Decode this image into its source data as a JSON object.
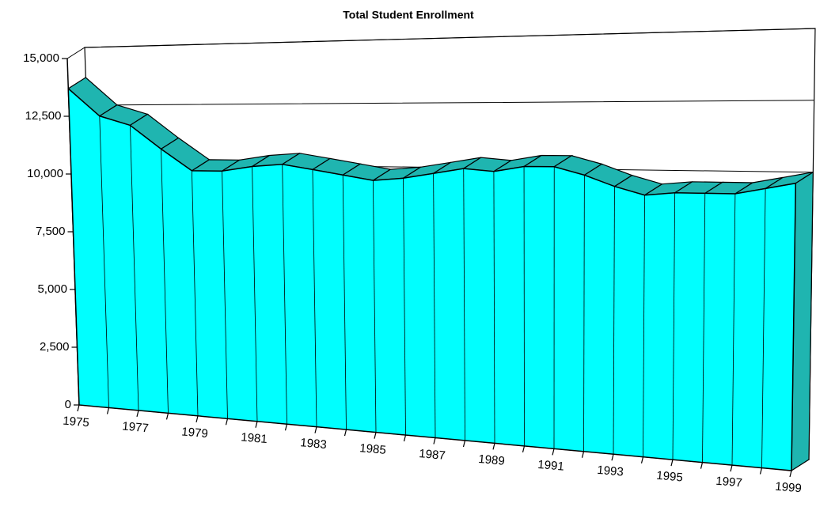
{
  "chart_data": {
    "type": "area3d",
    "title": "Total Student Enrollment",
    "categories": [
      "1975",
      null,
      "1977",
      null,
      "1979",
      null,
      "1981",
      null,
      "1983",
      null,
      "1985",
      null,
      "1987",
      null,
      "1989",
      null,
      "1991",
      null,
      "1993",
      null,
      "1995",
      null,
      "1997",
      null,
      "1999"
    ],
    "values": [
      13700,
      12500,
      12100,
      11100,
      10200,
      10200,
      10400,
      10500,
      10300,
      10100,
      9900,
      10000,
      10200,
      10400,
      10300,
      10500,
      10500,
      10200,
      9800,
      9500,
      9600,
      9600,
      9600,
      9800,
      10000
    ],
    "color": "#00ffff",
    "top_color": "#1fb5b0",
    "ylim": [
      0,
      15000
    ],
    "yticks": [
      0,
      {
        "value": 2500,
        "label": "2,500"
      },
      {
        "value": 5000,
        "label": "5,000"
      },
      {
        "value": 7500,
        "label": "7,500"
      },
      {
        "value": 10000,
        "label": "10,000"
      },
      {
        "value": 12500,
        "label": "12,500"
      },
      {
        "value": 15000,
        "label": "15,000"
      }
    ],
    "grid": true
  }
}
